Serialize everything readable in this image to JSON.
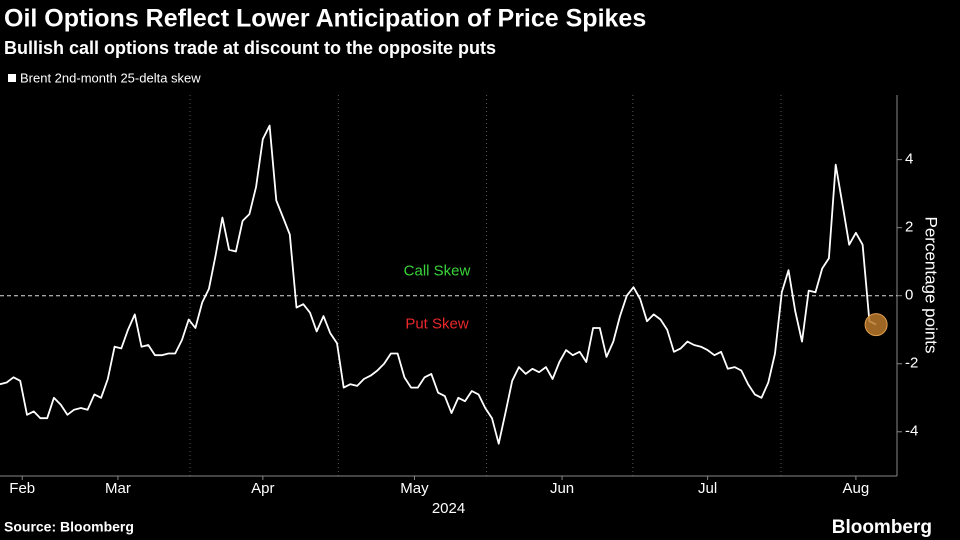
{
  "chart_data": {
    "type": "line",
    "title": "Oil Options Reflect Lower Anticipation of Price Spikes",
    "subtitle": "Bullish call options trade at discount to the opposite puts",
    "series": [
      {
        "name": "Brent 2nd-month 25-delta skew",
        "color": "#ffffff",
        "values": [
          -2.6,
          -2.55,
          -2.4,
          -2.5,
          -3.5,
          -3.4,
          -3.6,
          -3.6,
          -3.0,
          -3.2,
          -3.5,
          -3.35,
          -3.3,
          -3.35,
          -2.9,
          -3.0,
          -2.45,
          -1.5,
          -1.55,
          -1.0,
          -0.55,
          -1.5,
          -1.45,
          -1.75,
          -1.75,
          -1.7,
          -1.7,
          -1.3,
          -0.7,
          -0.95,
          -0.2,
          0.2,
          1.2,
          2.3,
          1.35,
          1.3,
          2.2,
          2.4,
          3.2,
          4.6,
          5.0,
          2.8,
          2.3,
          1.8,
          -0.35,
          -0.25,
          -0.5,
          -1.05,
          -0.6,
          -1.1,
          -1.4,
          -2.7,
          -2.6,
          -2.65,
          -2.45,
          -2.35,
          -2.2,
          -2.0,
          -1.7,
          -1.7,
          -2.4,
          -2.7,
          -2.7,
          -2.4,
          -2.3,
          -2.85,
          -2.95,
          -3.45,
          -3.0,
          -3.1,
          -2.8,
          -2.9,
          -3.3,
          -3.6,
          -4.35,
          -3.45,
          -2.5,
          -2.1,
          -2.3,
          -2.15,
          -2.25,
          -2.1,
          -2.45,
          -1.95,
          -1.6,
          -1.75,
          -1.65,
          -1.95,
          -0.95,
          -0.95,
          -1.8,
          -1.35,
          -0.6,
          0.0,
          0.25,
          -0.1,
          -0.75,
          -0.55,
          -0.7,
          -1.0,
          -1.65,
          -1.55,
          -1.35,
          -1.45,
          -1.5,
          -1.6,
          -1.75,
          -1.65,
          -2.15,
          -2.1,
          -2.2,
          -2.6,
          -2.9,
          -3.0,
          -2.55,
          -1.7,
          0.1,
          0.75,
          -0.45,
          -1.35,
          0.15,
          0.1,
          0.8,
          1.1,
          3.85,
          2.7,
          1.5,
          1.85,
          1.5,
          -0.75,
          -0.85
        ]
      }
    ],
    "xlim": [
      0,
      133.1
    ],
    "xticks": [
      {
        "value": 3.3,
        "label": "Feb"
      },
      {
        "value": 17.5,
        "label": "Mar"
      },
      {
        "value": 39,
        "label": "Apr"
      },
      {
        "value": 61.5,
        "label": "May"
      },
      {
        "value": 83.4,
        "label": "Jun"
      },
      {
        "value": 105,
        "label": "Jul"
      },
      {
        "value": 127,
        "label": "Aug"
      }
    ],
    "xgrid": [
      28.2,
      50.2,
      72.2,
      93.9,
      115.9
    ],
    "xlabel": "2024",
    "ylim": [
      -5.3,
      5.9
    ],
    "yticks": [
      -4,
      -2,
      0,
      2,
      4
    ],
    "ylabel": "Percentage points",
    "reference_line": 0,
    "annotations": [
      {
        "text": "Call Skew",
        "color": "#3ad43a"
      },
      {
        "text": "Put Skew",
        "color": "#e8282c"
      }
    ],
    "highlight_color": "#b8782c",
    "source": "Source: Bloomberg",
    "brand": "Bloomberg"
  }
}
